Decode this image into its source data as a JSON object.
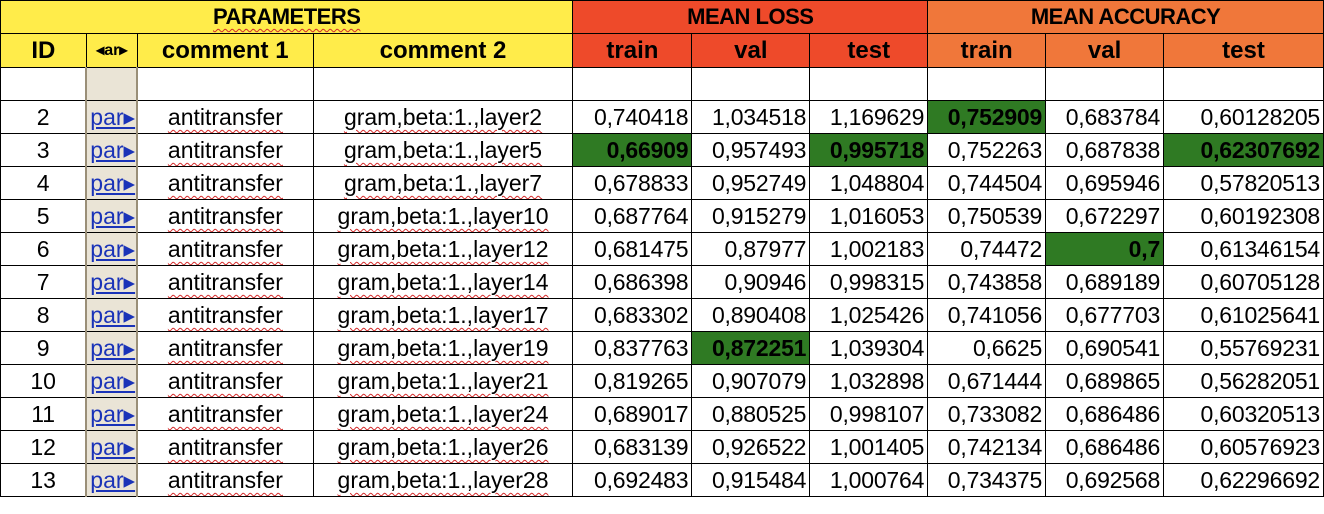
{
  "header": {
    "groups": {
      "parameters": "PARAMETERS",
      "mean_loss": "MEAN LOSS",
      "mean_accuracy": "MEAN ACCURACY"
    },
    "columns": [
      "ID",
      "◂ar▸",
      "comment 1",
      "comment 2",
      "train",
      "val",
      "test",
      "train",
      "val",
      "test"
    ]
  },
  "colors": {
    "params_header": "#ffec4a",
    "loss_header": "#ee4a2a",
    "accuracy_header": "#f0773a",
    "best_highlight": "#2f7a23",
    "link": "#1a33b8"
  },
  "rows": [
    {
      "id": "2",
      "link": "par▸",
      "c1": "antitransfer",
      "c2": "gram,beta:1.,layer2",
      "loss": [
        "0,740418",
        "1,034518",
        "1,169629"
      ],
      "acc": [
        "0,752909",
        "0,683784",
        "0,60128205"
      ],
      "hl_loss": [
        false,
        false,
        false
      ],
      "hl_acc": [
        true,
        false,
        false
      ]
    },
    {
      "id": "3",
      "link": "par▸",
      "c1": "antitransfer",
      "c2": "gram,beta:1.,layer5",
      "loss": [
        "0,66909",
        "0,957493",
        "0,995718"
      ],
      "acc": [
        "0,752263",
        "0,687838",
        "0,62307692"
      ],
      "hl_loss": [
        true,
        false,
        true
      ],
      "hl_acc": [
        false,
        false,
        true
      ]
    },
    {
      "id": "4",
      "link": "par▸",
      "c1": "antitransfer",
      "c2": "gram,beta:1.,layer7",
      "loss": [
        "0,678833",
        "0,952749",
        "1,048804"
      ],
      "acc": [
        "0,744504",
        "0,695946",
        "0,57820513"
      ],
      "hl_loss": [
        false,
        false,
        false
      ],
      "hl_acc": [
        false,
        false,
        false
      ]
    },
    {
      "id": "5",
      "link": "par▸",
      "c1": "antitransfer",
      "c2": "gram,beta:1.,layer10",
      "loss": [
        "0,687764",
        "0,915279",
        "1,016053"
      ],
      "acc": [
        "0,750539",
        "0,672297",
        "0,60192308"
      ],
      "hl_loss": [
        false,
        false,
        false
      ],
      "hl_acc": [
        false,
        false,
        false
      ]
    },
    {
      "id": "6",
      "link": "par▸",
      "c1": "antitransfer",
      "c2": "gram,beta:1.,layer12",
      "loss": [
        "0,681475",
        "0,87977",
        "1,002183"
      ],
      "acc": [
        "0,74472",
        "0,7",
        "0,61346154"
      ],
      "hl_loss": [
        false,
        false,
        false
      ],
      "hl_acc": [
        false,
        true,
        false
      ]
    },
    {
      "id": "7",
      "link": "par▸",
      "c1": "antitransfer",
      "c2": "gram,beta:1.,layer14",
      "loss": [
        "0,686398",
        "0,90946",
        "0,998315"
      ],
      "acc": [
        "0,743858",
        "0,689189",
        "0,60705128"
      ],
      "hl_loss": [
        false,
        false,
        false
      ],
      "hl_acc": [
        false,
        false,
        false
      ]
    },
    {
      "id": "8",
      "link": "par▸",
      "c1": "antitransfer",
      "c2": "gram,beta:1.,layer17",
      "loss": [
        "0,683302",
        "0,890408",
        "1,025426"
      ],
      "acc": [
        "0,741056",
        "0,677703",
        "0,61025641"
      ],
      "hl_loss": [
        false,
        false,
        false
      ],
      "hl_acc": [
        false,
        false,
        false
      ]
    },
    {
      "id": "9",
      "link": "par▸",
      "c1": "antitransfer",
      "c2": "gram,beta:1.,layer19",
      "loss": [
        "0,837763",
        "0,872251",
        "1,039304"
      ],
      "acc": [
        "0,6625",
        "0,690541",
        "0,55769231"
      ],
      "hl_loss": [
        false,
        true,
        false
      ],
      "hl_acc": [
        false,
        false,
        false
      ]
    },
    {
      "id": "10",
      "link": "par▸",
      "c1": "antitransfer",
      "c2": "gram,beta:1.,layer21",
      "loss": [
        "0,819265",
        "0,907079",
        "1,032898"
      ],
      "acc": [
        "0,671444",
        "0,689865",
        "0,56282051"
      ],
      "hl_loss": [
        false,
        false,
        false
      ],
      "hl_acc": [
        false,
        false,
        false
      ]
    },
    {
      "id": "11",
      "link": "par▸",
      "c1": "antitransfer",
      "c2": "gram,beta:1.,layer24",
      "loss": [
        "0,689017",
        "0,880525",
        "0,998107"
      ],
      "acc": [
        "0,733082",
        "0,686486",
        "0,60320513"
      ],
      "hl_loss": [
        false,
        false,
        false
      ],
      "hl_acc": [
        false,
        false,
        false
      ]
    },
    {
      "id": "12",
      "link": "par▸",
      "c1": "antitransfer",
      "c2": "gram,beta:1.,layer26",
      "loss": [
        "0,683139",
        "0,926522",
        "1,001405"
      ],
      "acc": [
        "0,742134",
        "0,686486",
        "0,60576923"
      ],
      "hl_loss": [
        false,
        false,
        false
      ],
      "hl_acc": [
        false,
        false,
        false
      ]
    },
    {
      "id": "13",
      "link": "par▸",
      "c1": "antitransfer",
      "c2": "gram,beta:1.,layer28",
      "loss": [
        "0,692483",
        "0,915484",
        "1,000764"
      ],
      "acc": [
        "0,734375",
        "0,692568",
        "0,62296692"
      ],
      "hl_loss": [
        false,
        false,
        false
      ],
      "hl_acc": [
        false,
        false,
        false
      ]
    }
  ]
}
